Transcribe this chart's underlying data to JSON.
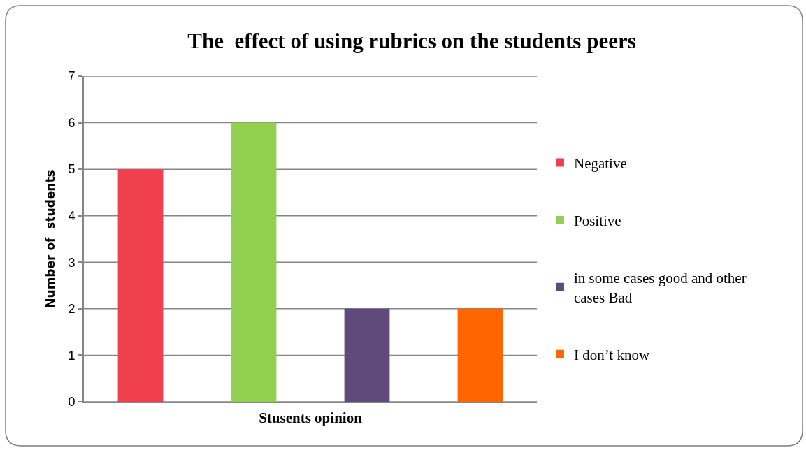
{
  "chart_data": {
    "type": "bar",
    "title": "The  effect of using rubrics on the students peers",
    "xlabel": "Stusents opinion",
    "ylabel": "Number of  students",
    "categories": [
      null,
      null,
      null,
      null
    ],
    "series": [
      {
        "name": "Negative",
        "color": "#f0404e",
        "values": [
          5,
          null,
          null,
          null
        ]
      },
      {
        "name": "Positive",
        "color": "#92d050",
        "values": [
          null,
          6,
          null,
          null
        ]
      },
      {
        "name": "in some cases good and other cases Bad",
        "color": "#604a7b",
        "values": [
          null,
          null,
          2,
          null
        ]
      },
      {
        "name": "I don’t know",
        "color": "#ff6600",
        "values": [
          null,
          null,
          null,
          2
        ]
      }
    ],
    "ylim": [
      0,
      7
    ],
    "yticks": [
      0,
      1,
      2,
      3,
      4,
      5,
      6,
      7
    ],
    "grid": "y",
    "legend": "right"
  }
}
